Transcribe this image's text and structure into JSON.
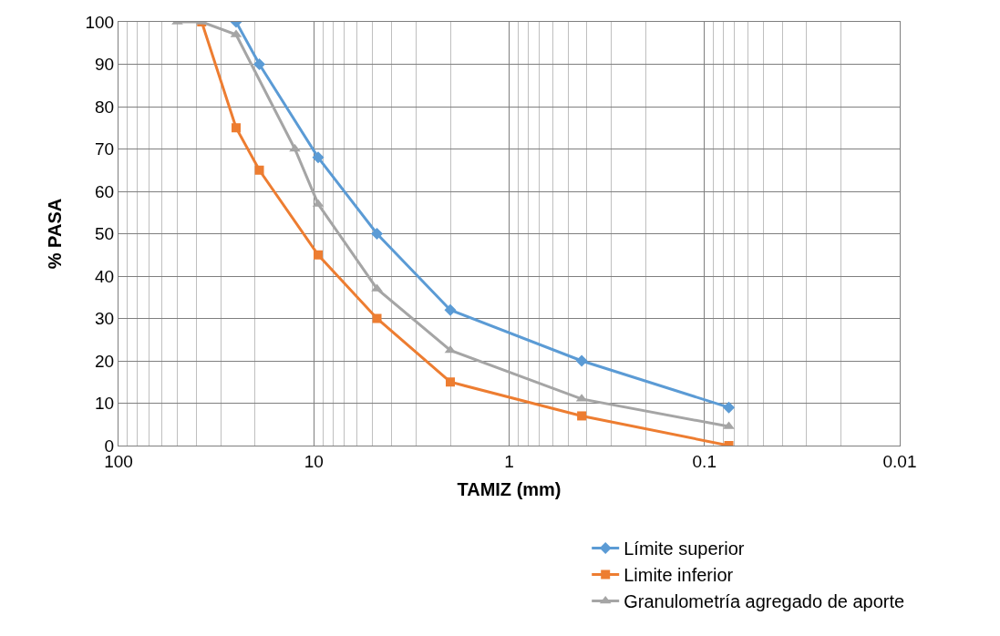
{
  "chart_data": {
    "type": "line",
    "xlabel": "TAMIZ (mm)",
    "ylabel": "% PASA",
    "log": "x",
    "xlim": [
      100,
      0.01
    ],
    "xticks": [
      100,
      10,
      1,
      0.1,
      0.01
    ],
    "ylim": [
      0,
      100
    ],
    "yticks": [
      0,
      10,
      20,
      30,
      40,
      50,
      60,
      70,
      80,
      90,
      100
    ],
    "grid": true,
    "legend": "bottom right",
    "line_style": "solid",
    "series": [
      {
        "name": "Límite superior",
        "color": "#5b9bd5",
        "marker": "diamond",
        "x": [
          25,
          19,
          9.5,
          4.75,
          2,
          0.425,
          0.075
        ],
        "values": [
          100,
          90,
          68,
          50,
          32,
          20,
          9
        ]
      },
      {
        "name": "Limite inferior",
        "color": "#ed7d31",
        "marker": "square",
        "x": [
          37.5,
          25,
          19,
          9.5,
          4.75,
          2,
          0.425,
          0.075
        ],
        "values": [
          100,
          75,
          65,
          45,
          30,
          15,
          7,
          0
        ]
      },
      {
        "name": "Granulometría agregado de aporte",
        "color": "#a5a5a5",
        "marker": "triangle",
        "x": [
          50,
          37.5,
          25,
          12.5,
          9.5,
          4.75,
          2,
          0.425,
          0.075
        ],
        "values": [
          100,
          100,
          97,
          70,
          57,
          37,
          22.5,
          11,
          4.5
        ]
      }
    ]
  }
}
